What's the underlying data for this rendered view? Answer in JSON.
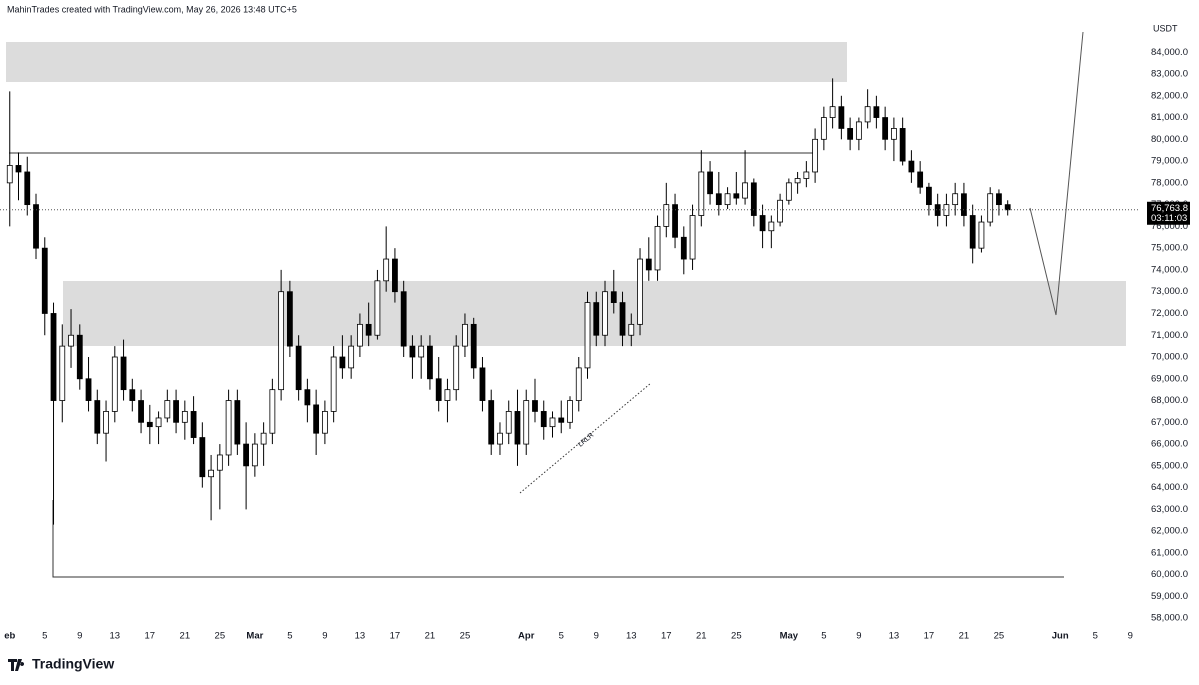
{
  "header": {
    "text": "MahinTrades created with TradingView.com, May 26, 2026 13:48 UTC+5"
  },
  "footer": {
    "logo": "TradingView"
  },
  "chart_data": {
    "type": "candlestick",
    "currency": "USDT",
    "annotation": "LRLR",
    "last_price": {
      "value": 76763.8,
      "label": "76,763.8"
    },
    "countdown": "03:11:03",
    "up_color": "#ffffff",
    "down_color": "#000000",
    "x": [
      "Feb 1",
      "Feb 2",
      "Feb 3",
      "Feb 4",
      "Feb 5",
      "Feb 6",
      "Feb 7",
      "Feb 8",
      "Feb 9",
      "Feb 10",
      "Feb 11",
      "Feb 12",
      "Feb 13",
      "Feb 14",
      "Feb 15",
      "Feb 16",
      "Feb 17",
      "Feb 18",
      "Feb 19",
      "Feb 20",
      "Feb 21",
      "Feb 22",
      "Feb 23",
      "Feb 24",
      "Feb 25",
      "Feb 26",
      "Feb 27",
      "Feb 28",
      "Mar 1",
      "Mar 2",
      "Mar 3",
      "Mar 4",
      "Mar 5",
      "Mar 6",
      "Mar 7",
      "Mar 8",
      "Mar 9",
      "Mar 10",
      "Mar 11",
      "Mar 12",
      "Mar 13",
      "Mar 14",
      "Mar 15",
      "Mar 16",
      "Mar 17",
      "Mar 18",
      "Mar 19",
      "Mar 20",
      "Mar 21",
      "Mar 22",
      "Mar 23",
      "Mar 24",
      "Mar 25",
      "Mar 26",
      "Mar 27",
      "Mar 28",
      "Mar 29",
      "Mar 30",
      "Mar 31",
      "Apr 1",
      "Apr 2",
      "Apr 3",
      "Apr 4",
      "Apr 5",
      "Apr 6",
      "Apr 7",
      "Apr 8",
      "Apr 9",
      "Apr 10",
      "Apr 11",
      "Apr 12",
      "Apr 13",
      "Apr 14",
      "Apr 15",
      "Apr 16",
      "Apr 17",
      "Apr 18",
      "Apr 19",
      "Apr 20",
      "Apr 21",
      "Apr 22",
      "Apr 23",
      "Apr 24",
      "Apr 25",
      "Apr 26",
      "Apr 27",
      "Apr 28",
      "Apr 29",
      "Apr 30",
      "May 1",
      "May 2",
      "May 3",
      "May 4",
      "May 5",
      "May 6",
      "May 7",
      "May 8",
      "May 9",
      "May 10",
      "May 11",
      "May 12",
      "May 13",
      "May 14",
      "May 15",
      "May 16",
      "May 17",
      "May 18",
      "May 19",
      "May 20",
      "May 21",
      "May 22",
      "May 23",
      "May 24",
      "May 25",
      "May 26"
    ],
    "ohlc": [
      [
        78000,
        82200,
        76000,
        78800
      ],
      [
        78800,
        79400,
        77200,
        78500
      ],
      [
        78500,
        79200,
        76500,
        77000
      ],
      [
        77000,
        77500,
        74500,
        75000
      ],
      [
        75000,
        75500,
        71000,
        72000
      ],
      [
        72000,
        72500,
        62300,
        68000
      ],
      [
        68000,
        71500,
        67000,
        70500
      ],
      [
        70500,
        72200,
        69500,
        71000
      ],
      [
        71000,
        71500,
        68500,
        69000
      ],
      [
        69000,
        70000,
        67500,
        68000
      ],
      [
        68000,
        68500,
        66000,
        66500
      ],
      [
        66500,
        68000,
        65200,
        67500
      ],
      [
        67500,
        70500,
        67000,
        70000
      ],
      [
        70000,
        70800,
        68000,
        68500
      ],
      [
        68500,
        69000,
        67500,
        68000
      ],
      [
        68000,
        68500,
        66500,
        67000
      ],
      [
        67000,
        67800,
        66000,
        66800
      ],
      [
        66800,
        67500,
        66000,
        67200
      ],
      [
        67200,
        68500,
        67000,
        68000
      ],
      [
        68000,
        68500,
        66500,
        67000
      ],
      [
        67000,
        68000,
        66200,
        67500
      ],
      [
        67500,
        68200,
        66000,
        66300
      ],
      [
        66300,
        67000,
        64000,
        64500
      ],
      [
        64500,
        65500,
        62500,
        64800
      ],
      [
        64800,
        66000,
        63000,
        65500
      ],
      [
        65500,
        68500,
        65000,
        68000
      ],
      [
        68000,
        68500,
        65500,
        66000
      ],
      [
        66000,
        67000,
        63000,
        65000
      ],
      [
        65000,
        66500,
        64500,
        66000
      ],
      [
        66000,
        67000,
        65000,
        66500
      ],
      [
        66500,
        69000,
        66000,
        68500
      ],
      [
        68500,
        74000,
        68000,
        73000
      ],
      [
        73000,
        73500,
        70000,
        70500
      ],
      [
        70500,
        71000,
        68000,
        68500
      ],
      [
        68500,
        69000,
        67000,
        67800
      ],
      [
        67800,
        68500,
        65500,
        66500
      ],
      [
        66500,
        68000,
        66000,
        67500
      ],
      [
        67500,
        70500,
        67000,
        70000
      ],
      [
        70000,
        71000,
        69000,
        69500
      ],
      [
        69500,
        71000,
        69000,
        70500
      ],
      [
        70500,
        72000,
        70000,
        71500
      ],
      [
        71500,
        72500,
        70500,
        71000
      ],
      [
        71000,
        74000,
        70800,
        73500
      ],
      [
        73500,
        76000,
        73000,
        74500
      ],
      [
        74500,
        75000,
        72500,
        73000
      ],
      [
        73000,
        73500,
        70000,
        70500
      ],
      [
        70500,
        71000,
        69000,
        70000
      ],
      [
        70000,
        71000,
        69000,
        70500
      ],
      [
        70500,
        71000,
        68500,
        69000
      ],
      [
        69000,
        70000,
        67500,
        68000
      ],
      [
        68000,
        69000,
        67000,
        68500
      ],
      [
        68500,
        71000,
        68000,
        70500
      ],
      [
        70500,
        72000,
        70000,
        71500
      ],
      [
        71500,
        71800,
        69000,
        69500
      ],
      [
        69500,
        70000,
        67500,
        68000
      ],
      [
        68000,
        68500,
        65500,
        66000
      ],
      [
        66000,
        67000,
        65500,
        66500
      ],
      [
        66500,
        68000,
        66000,
        67500
      ],
      [
        67500,
        68500,
        65000,
        66000
      ],
      [
        66000,
        68500,
        65500,
        68000
      ],
      [
        68000,
        69000,
        67000,
        67500
      ],
      [
        67500,
        68000,
        66200,
        66800
      ],
      [
        66800,
        67500,
        66300,
        67200
      ],
      [
        67200,
        68000,
        66500,
        67000
      ],
      [
        67000,
        68200,
        66700,
        68000
      ],
      [
        68000,
        70000,
        67500,
        69500
      ],
      [
        69500,
        73000,
        69000,
        72500
      ],
      [
        72500,
        73000,
        70500,
        71000
      ],
      [
        71000,
        73500,
        70500,
        73000
      ],
      [
        73000,
        74000,
        72000,
        72500
      ],
      [
        72500,
        73000,
        70500,
        71000
      ],
      [
        71000,
        72000,
        70500,
        71500
      ],
      [
        71500,
        75000,
        71000,
        74500
      ],
      [
        74500,
        75500,
        73500,
        74000
      ],
      [
        74000,
        76500,
        73500,
        76000
      ],
      [
        76000,
        78000,
        75500,
        77000
      ],
      [
        77000,
        77500,
        75000,
        75500
      ],
      [
        75500,
        76000,
        73800,
        74500
      ],
      [
        74500,
        77000,
        74000,
        76500
      ],
      [
        76500,
        79500,
        76000,
        78500
      ],
      [
        78500,
        79000,
        77000,
        77500
      ],
      [
        77500,
        78500,
        76500,
        77000
      ],
      [
        77000,
        77800,
        76800,
        77500
      ],
      [
        77500,
        78500,
        77000,
        77300
      ],
      [
        77300,
        79500,
        77000,
        78000
      ],
      [
        78000,
        78200,
        76000,
        76500
      ],
      [
        76500,
        77000,
        75000,
        75800
      ],
      [
        75800,
        76500,
        75000,
        76200
      ],
      [
        76200,
        77500,
        76000,
        77200
      ],
      [
        77200,
        78200,
        77000,
        78000
      ],
      [
        78000,
        78500,
        77500,
        78200
      ],
      [
        78200,
        79000,
        77800,
        78500
      ],
      [
        78500,
        80500,
        78000,
        80000
      ],
      [
        80000,
        81500,
        79500,
        81000
      ],
      [
        81000,
        82800,
        80500,
        81500
      ],
      [
        81500,
        82000,
        80000,
        80500
      ],
      [
        80500,
        81000,
        79500,
        80000
      ],
      [
        80000,
        81000,
        79500,
        80800
      ],
      [
        80800,
        82300,
        80500,
        81500
      ],
      [
        81500,
        82000,
        80500,
        81000
      ],
      [
        81000,
        81500,
        79500,
        80000
      ],
      [
        80000,
        81000,
        79000,
        80500
      ],
      [
        80500,
        81000,
        78800,
        79000
      ],
      [
        79000,
        79500,
        78000,
        78500
      ],
      [
        78500,
        79000,
        77500,
        77800
      ],
      [
        77800,
        78000,
        76500,
        77000
      ],
      [
        77000,
        77500,
        76000,
        76500
      ],
      [
        76500,
        77500,
        76000,
        77000
      ],
      [
        77000,
        78000,
        76500,
        77500
      ],
      [
        77500,
        78000,
        76000,
        76500
      ],
      [
        76500,
        77000,
        74300,
        75000
      ],
      [
        75000,
        76500,
        74800,
        76200
      ],
      [
        76200,
        77800,
        76000,
        77500
      ],
      [
        77500,
        77700,
        76500,
        77000
      ],
      [
        77000,
        77200,
        76500,
        76763.8
      ]
    ],
    "xlim": [
      "Jan 31",
      "Jun 10"
    ],
    "xticks": [
      {
        "value": "Feb 1",
        "label": "eb"
      },
      {
        "value": "Feb 5",
        "label": "5"
      },
      {
        "value": "Feb 9",
        "label": "9"
      },
      {
        "value": "Feb 13",
        "label": "13"
      },
      {
        "value": "Feb 17",
        "label": "17"
      },
      {
        "value": "Feb 21",
        "label": "21"
      },
      {
        "value": "Feb 25",
        "label": "25"
      },
      {
        "value": "Mar 1",
        "label": "Mar"
      },
      {
        "value": "Mar 5",
        "label": "5"
      },
      {
        "value": "Mar 9",
        "label": "9"
      },
      {
        "value": "Mar 13",
        "label": "13"
      },
      {
        "value": "Mar 17",
        "label": "17"
      },
      {
        "value": "Mar 21",
        "label": "21"
      },
      {
        "value": "Mar 25",
        "label": "25"
      },
      {
        "value": "Apr 1",
        "label": "Apr"
      },
      {
        "value": "Apr 5",
        "label": "5"
      },
      {
        "value": "Apr 9",
        "label": "9"
      },
      {
        "value": "Apr 13",
        "label": "13"
      },
      {
        "value": "Apr 17",
        "label": "17"
      },
      {
        "value": "Apr 21",
        "label": "21"
      },
      {
        "value": "Apr 25",
        "label": "25"
      },
      {
        "value": "May 1",
        "label": "May"
      },
      {
        "value": "May 5",
        "label": "5"
      },
      {
        "value": "May 9",
        "label": "9"
      },
      {
        "value": "May 13",
        "label": "13"
      },
      {
        "value": "May 17",
        "label": "17"
      },
      {
        "value": "May 21",
        "label": "21"
      },
      {
        "value": "May 25",
        "label": "25"
      },
      {
        "value": "Jun 1",
        "label": "Jun"
      },
      {
        "value": "Jun 5",
        "label": "5"
      },
      {
        "value": "Jun 9",
        "label": "9"
      }
    ],
    "ylim": [
      57000,
      86400
    ],
    "yticks": [
      {
        "value": 58000,
        "label": "58,000.0"
      },
      {
        "value": 59000,
        "label": "59,000.0"
      },
      {
        "value": 60000,
        "label": "60,000.0"
      },
      {
        "value": 61000,
        "label": "61,000.0"
      },
      {
        "value": 62000,
        "label": "62,000.0"
      },
      {
        "value": 63000,
        "label": "63,000.0"
      },
      {
        "value": 64000,
        "label": "64,000.0"
      },
      {
        "value": 65000,
        "label": "65,000.0"
      },
      {
        "value": 66000,
        "label": "66,000.0"
      },
      {
        "value": 67000,
        "label": "67,000.0"
      },
      {
        "value": 68000,
        "label": "68,000.0"
      },
      {
        "value": 69000,
        "label": "69,000.0"
      },
      {
        "value": 70000,
        "label": "70,000.0"
      },
      {
        "value": 71000,
        "label": "71,000.0"
      },
      {
        "value": 72000,
        "label": "72,000.0"
      },
      {
        "value": 73000,
        "label": "73,000.0"
      },
      {
        "value": 74000,
        "label": "74,000.0"
      },
      {
        "value": 75000,
        "label": "75,000.0"
      },
      {
        "value": 76000,
        "label": "76,000.0"
      },
      {
        "value": 77000,
        "label": "77,000.0"
      },
      {
        "value": 78000,
        "label": "78,000.0"
      },
      {
        "value": 79000,
        "label": "79,000.0"
      },
      {
        "value": 80000,
        "label": "80,000.0"
      },
      {
        "value": 81000,
        "label": "81,000.0"
      },
      {
        "value": 82000,
        "label": "82,000.0"
      },
      {
        "value": 83000,
        "label": "83,000.0"
      },
      {
        "value": 84000,
        "label": "84,000.0"
      }
    ]
  }
}
